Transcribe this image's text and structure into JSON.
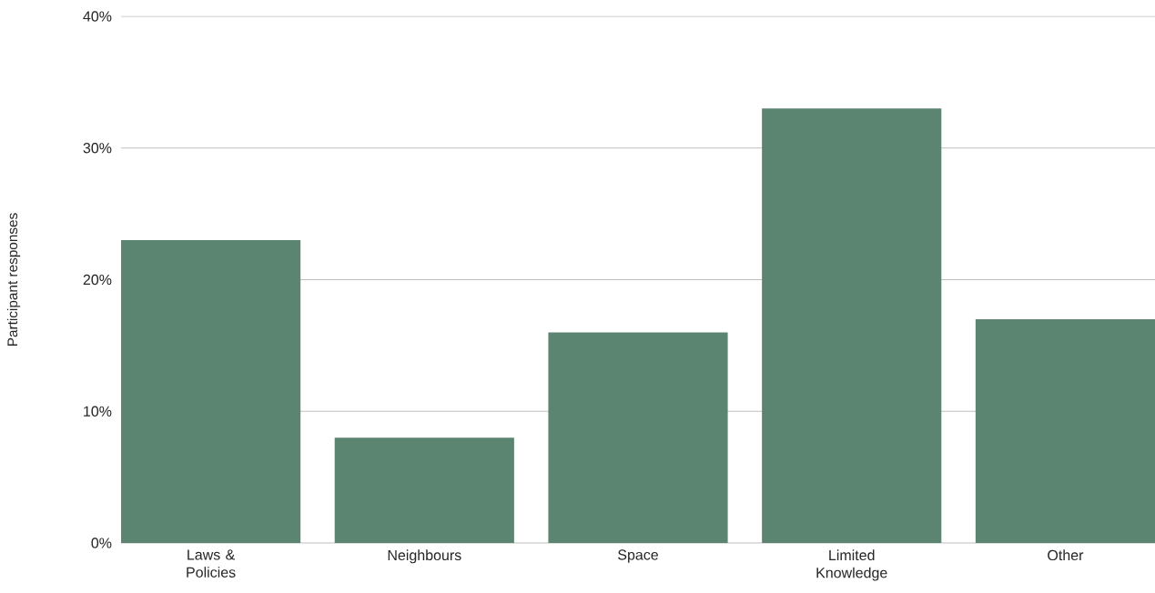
{
  "chart_data": {
    "type": "bar",
    "ylabel": "Participant responses",
    "categories": [
      "Laws & Policies",
      "Neighbours",
      "Space",
      "Limited Knowledge",
      "Other"
    ],
    "values": [
      23,
      8,
      16,
      33,
      17
    ],
    "color": "#5b8570",
    "ylim": [
      0,
      40
    ],
    "yticks": [
      {
        "value": 0,
        "label": "0%"
      },
      {
        "value": 10,
        "label": "10%"
      },
      {
        "value": 20,
        "label": "20%"
      },
      {
        "value": 30,
        "label": "30%"
      },
      {
        "value": 40,
        "label": "40%"
      }
    ],
    "grid": "y"
  }
}
